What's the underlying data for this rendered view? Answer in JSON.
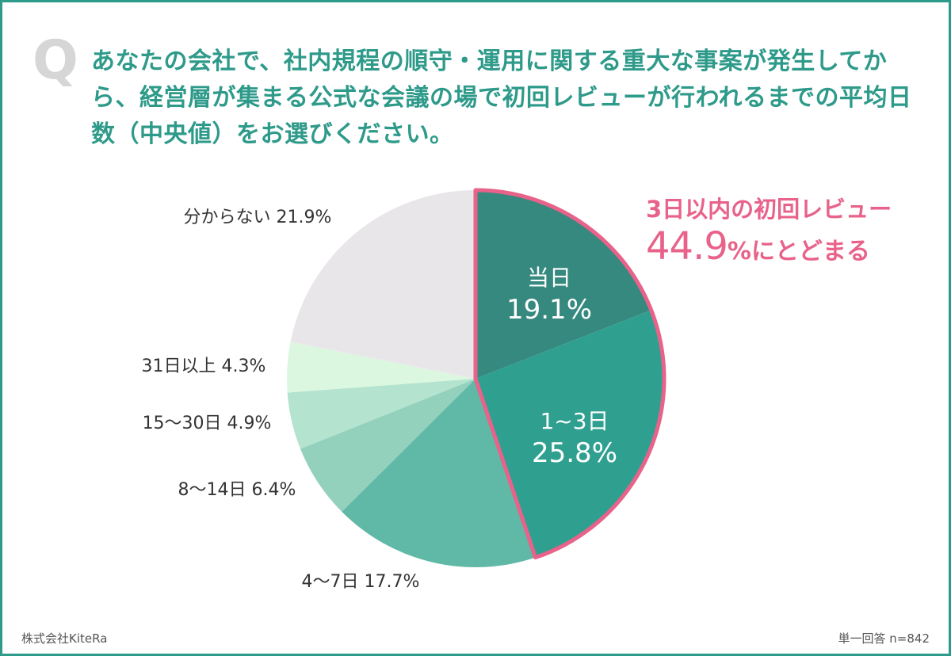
{
  "question": {
    "mark": "Q",
    "text": "あなたの会社で、社内規程の順守・運用に関する重大な事案が発生してから、経営層が集まる公式な会議の場で初回レビューが行われるまでの平均日数（中央値）をお選びください。"
  },
  "callout": {
    "line1": "3日以内の初回レビュー",
    "percent": "44.9",
    "percent_sign": "%",
    "suffix": "にとどまる",
    "color": "#e8628a"
  },
  "footer": {
    "company": "株式会社KiteRa",
    "sample": "単一回答 n=842"
  },
  "chart_data": {
    "type": "pie",
    "slices": [
      {
        "label": "当日",
        "value": 19.1,
        "color": "#36897f"
      },
      {
        "label": "1~3日",
        "value": 25.8,
        "color": "#2fa090"
      },
      {
        "label": "4〜7日",
        "value": 17.7,
        "color": "#60b8a6"
      },
      {
        "label": "8〜14日",
        "value": 6.4,
        "color": "#93d1bd"
      },
      {
        "label": "15〜30日",
        "value": 4.9,
        "color": "#b4e3cf"
      },
      {
        "label": "31日以上",
        "value": 4.3,
        "color": "#dcf7df"
      },
      {
        "label": "分からない",
        "value": 21.9,
        "color": "#e9e6ea"
      }
    ],
    "highlight": {
      "slices": [
        0,
        1
      ],
      "stroke": "#e8628a"
    }
  }
}
